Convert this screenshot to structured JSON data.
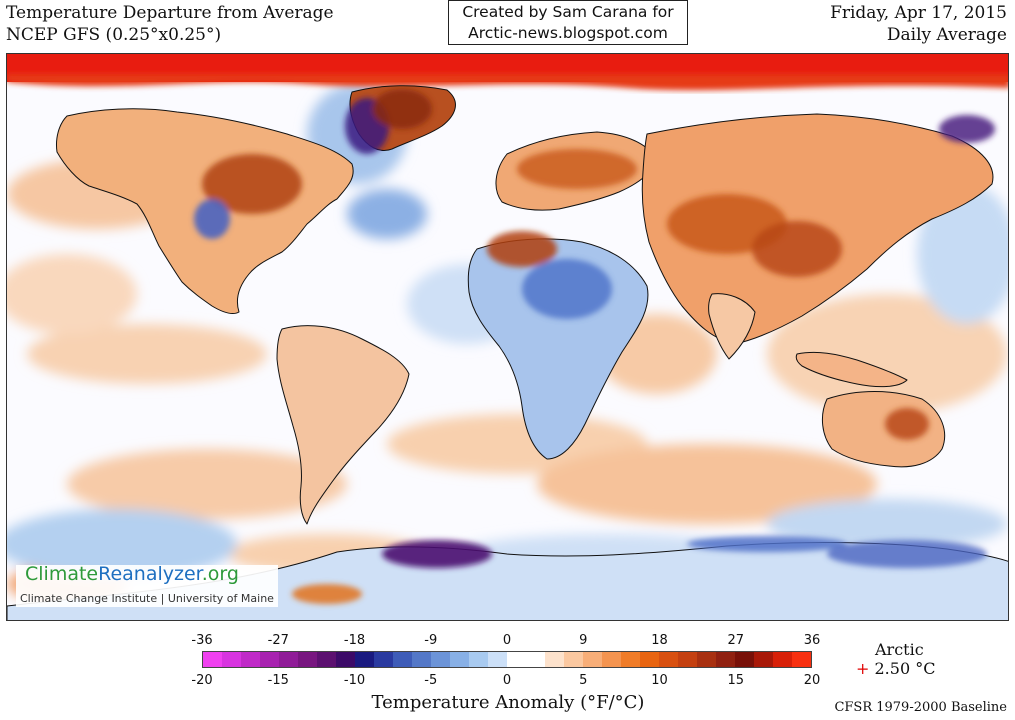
{
  "header": {
    "title": "Temperature Departure from Average",
    "model": "NCEP GFS (0.25°x0.25°)",
    "date": "Friday, Apr 17, 2015",
    "period": "Daily Average"
  },
  "credit": {
    "line1": "Created by Sam Carana for",
    "line2": "Arctic-news.blogspot.com"
  },
  "logo": {
    "name_part1": "Climate",
    "name_part2": "Reanalyzer",
    "name_part3": ".org",
    "subtitle": "Climate Change Institute | University of Maine"
  },
  "colorbar": {
    "title": "Temperature Anomaly (°F/°C)",
    "fahrenheit_ticks": [
      "-36",
      "-27",
      "-18",
      "-9",
      "0",
      "9",
      "18",
      "27",
      "36"
    ],
    "celsius_ticks": [
      "-20",
      "-15",
      "-10",
      "-5",
      "0",
      "5",
      "10",
      "15",
      "20"
    ],
    "colors": [
      "#f040f0",
      "#d834e0",
      "#c02ac8",
      "#a822b0",
      "#901c98",
      "#781680",
      "#5c1070",
      "#3c0a68",
      "#1a1a80",
      "#2a3aa0",
      "#3e5cb8",
      "#5478c8",
      "#6c94d8",
      "#88b0e6",
      "#a8caf0",
      "#cce0f8",
      "#ffffff",
      "#ffffff",
      "#fde2cc",
      "#fbc8a0",
      "#f8ae78",
      "#f49450",
      "#f07c28",
      "#e86410",
      "#d85010",
      "#c44010",
      "#a83010",
      "#902010",
      "#781008",
      "#a81808",
      "#d82008",
      "#f83010"
    ]
  },
  "arctic": {
    "label": "Arctic",
    "sign": "+",
    "value": "2.50 °C"
  },
  "baseline": "CFSR 1979-2000 Baseline",
  "map": {
    "description_colors": {
      "warm_strong": "#e81010",
      "warm_mid": "#d0601e",
      "warm_light": "#f3b888",
      "cool_light": "#aac8ee",
      "cool_mid": "#5a80cc",
      "cool_strong": "#4a1870"
    }
  }
}
